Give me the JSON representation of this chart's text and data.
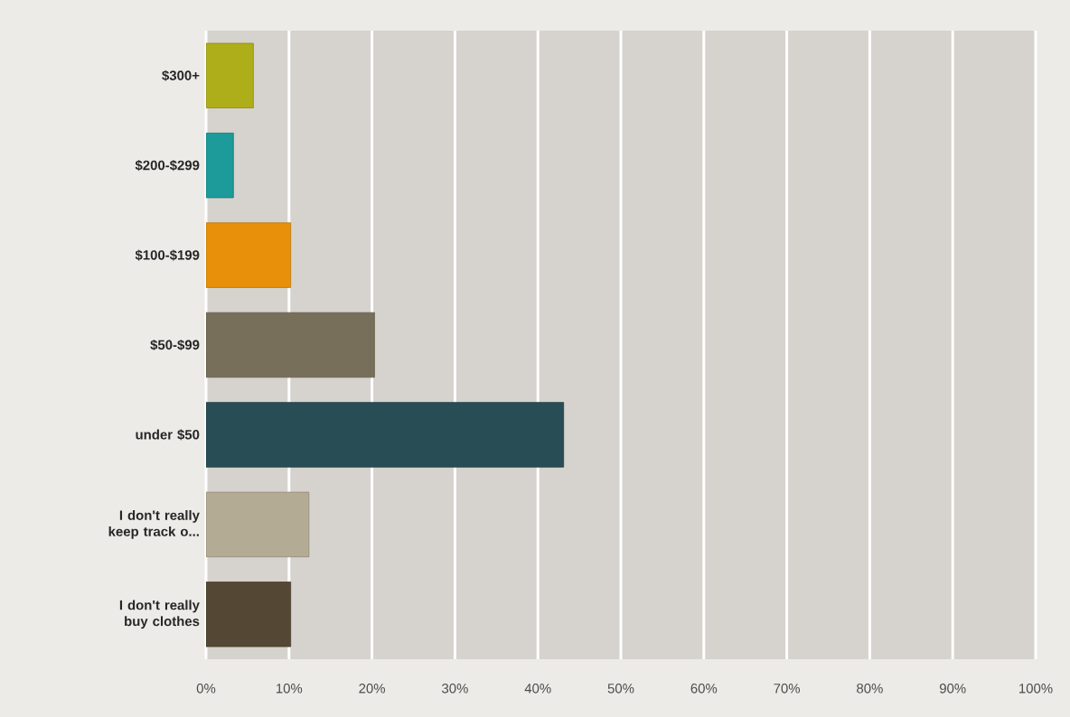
{
  "chart_data": {
    "type": "bar",
    "orientation": "horizontal",
    "categories": [
      "$300+",
      "$200-$299",
      "$100-$199",
      "$50-$99",
      "under $50",
      "I don't really keep track o...",
      "I don't really buy clothes"
    ],
    "values": [
      5.7,
      3.3,
      10.2,
      20.3,
      43.1,
      12.4,
      10.2
    ],
    "colors": [
      "#aeae1a",
      "#1d9a9a",
      "#e8900a",
      "#776f5a",
      "#284d55",
      "#b4ab94",
      "#544835"
    ],
    "xlim": [
      0,
      100
    ],
    "xticks": [
      {
        "value": 0,
        "label": "0%"
      },
      {
        "value": 10,
        "label": "10%"
      },
      {
        "value": 20,
        "label": "20%"
      },
      {
        "value": 30,
        "label": "30%"
      },
      {
        "value": 40,
        "label": "40%"
      },
      {
        "value": 50,
        "label": "50%"
      },
      {
        "value": 60,
        "label": "60%"
      },
      {
        "value": 70,
        "label": "70%"
      },
      {
        "value": 80,
        "label": "80%"
      },
      {
        "value": 90,
        "label": "90%"
      },
      {
        "value": 100,
        "label": "100%"
      }
    ],
    "grid": "x"
  }
}
